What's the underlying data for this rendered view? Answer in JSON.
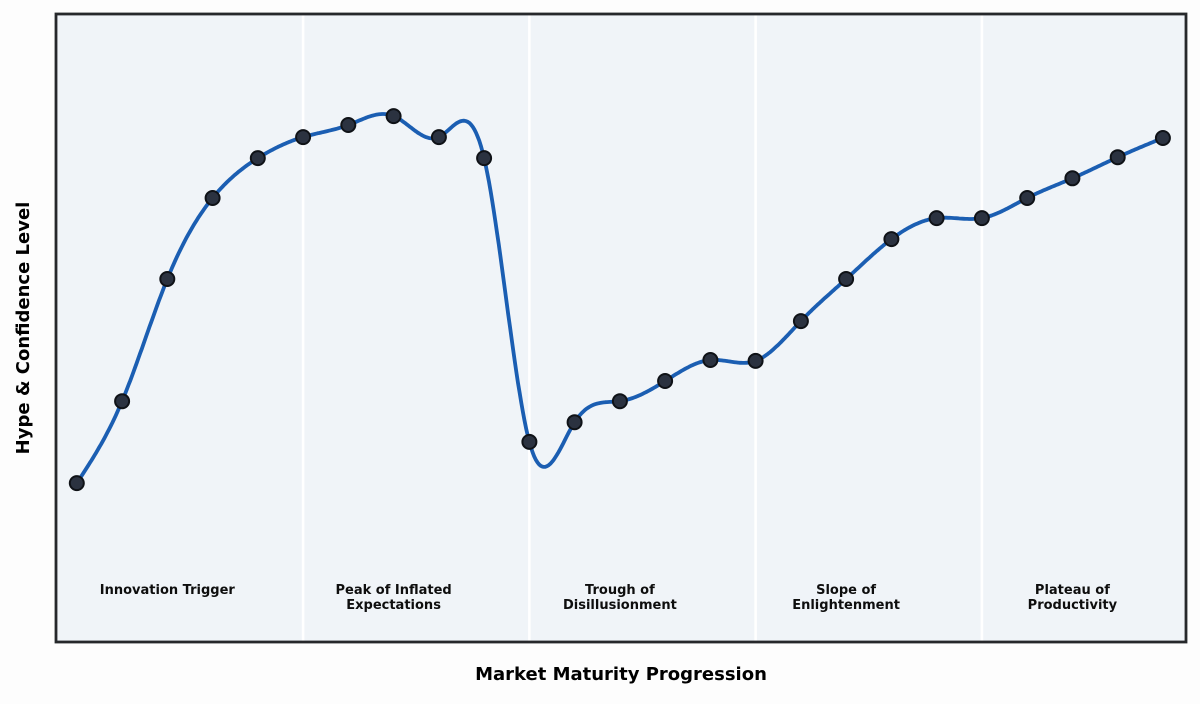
{
  "chart_data": {
    "type": "line",
    "title": "",
    "xlabel": "Market Maturity Progression",
    "ylabel": "Hype & Confidence Level",
    "x": [
      0,
      1,
      2,
      3,
      4,
      5,
      6,
      7,
      8,
      9,
      10,
      11,
      12,
      13,
      14,
      15,
      16,
      17,
      18,
      19,
      20,
      21,
      22,
      23,
      24
    ],
    "series": [
      {
        "name": "Hype & Confidence Level",
        "values": [
          10,
          28.3,
          55.6,
          73.7,
          82.6,
          87.3,
          90,
          92,
          87.3,
          82.6,
          19.2,
          23.6,
          28.3,
          32.8,
          37.5,
          37.3,
          46.2,
          55.6,
          64.5,
          69.2,
          69.2,
          73.7,
          78.1,
          82.8,
          87.1
        ]
      }
    ],
    "smoothing": "natural-cubic-spline",
    "markers": true,
    "grid": false,
    "axis_tick_labels": "none",
    "legend": "none",
    "xlim": [
      -0.46,
      24.51
    ],
    "ylim": [
      -25.5,
      114.8
    ],
    "phase_dividers_x": [
      5,
      10,
      15,
      20
    ],
    "phases": [
      {
        "lines": [
          "Innovation Trigger"
        ],
        "center_x": 2
      },
      {
        "lines": [
          "Peak of Inflated",
          "Expectations"
        ],
        "center_x": 7
      },
      {
        "lines": [
          "Trough of",
          "Disillusionment"
        ],
        "center_x": 12
      },
      {
        "lines": [
          "Slope of",
          "Enlightenment"
        ],
        "center_x": 17
      },
      {
        "lines": [
          "Plateau of",
          "Productivity"
        ],
        "center_x": 22
      }
    ],
    "colors": {
      "line": "#1b5eb2",
      "marker_fill": "#2b3240",
      "marker_edge": "#0f1217",
      "plot_background": "#f0f4f8",
      "phase_divider": "#ffffff",
      "plot_border": "#26282b",
      "figure_background": "#fdfdfd"
    }
  }
}
